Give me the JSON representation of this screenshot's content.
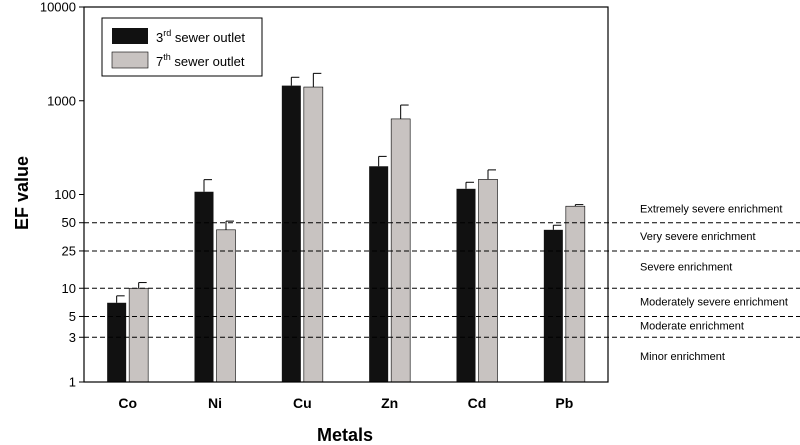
{
  "chart_data": {
    "type": "bar",
    "ylabel": "EF value",
    "xlabel": "Metals",
    "yscale": "log",
    "ylim": [
      1,
      10000
    ],
    "y_ticks": [
      1,
      3,
      5,
      10,
      25,
      50,
      100,
      1000,
      10000
    ],
    "grid": false,
    "legend_position": "top-left",
    "categories": [
      "Co",
      "Ni",
      "Cu",
      "Zn",
      "Cd",
      "Pb"
    ],
    "series": [
      {
        "name_pre": "3",
        "name_sup": "rd",
        "name_post": " sewer outlet",
        "color": "#111111",
        "values": [
          7,
          107,
          1450,
          200,
          115,
          42
        ],
        "errors": [
          1.3,
          37,
          330,
          55,
          20,
          5
        ]
      },
      {
        "name_pre": "7",
        "name_sup": "th",
        "name_post": " sewer outlet",
        "color": "#c8c3c1",
        "values": [
          10,
          42,
          1400,
          640,
          145,
          75
        ],
        "errors": [
          1.5,
          10,
          560,
          260,
          38,
          3
        ]
      }
    ],
    "thresholds": [
      {
        "value": 50,
        "label": "Extremely severe enrichment",
        "label_value": 71
      },
      {
        "value": 25,
        "label": "Very  severe enrichment",
        "label_value": 36
      },
      {
        "value": 10,
        "label": "Severe enrichment",
        "label_value": 17
      },
      {
        "value": 5,
        "label": "Moderately severe enrichment",
        "label_value": 7.2
      },
      {
        "value": 3,
        "label": "Moderate enrichment",
        "label_value": 4
      },
      {
        "value": 1,
        "label": "Minor enrichment",
        "label_value": 1.9
      }
    ]
  }
}
